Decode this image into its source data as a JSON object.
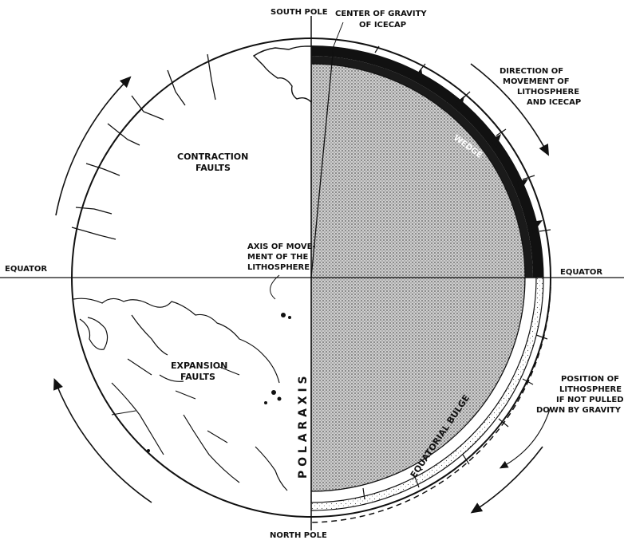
{
  "labels": {
    "south_pole": "SOUTH POLE",
    "north_pole": "NORTH POLE",
    "center_gravity_1": "CENTER OF GRAVITY",
    "center_gravity_2": "OF ICECAP",
    "direction_1": "DIRECTION OF",
    "direction_2": "MOVEMENT OF",
    "direction_3": "LITHOSPHERE",
    "direction_4": "AND ICECAP",
    "contraction_1": "CONTRACTION",
    "contraction_2": "FAULTS",
    "wedge": "WEDGE",
    "axis_move_1": "AXIS OF MOVE-",
    "axis_move_2": "MENT OF THE",
    "axis_move_3": "LITHOSPHERE",
    "equator_left": "EQUATOR",
    "equator_right": "EQUATOR",
    "polar_axis": "P O L A R    A X I S",
    "expansion_1": "EXPANSION",
    "expansion_2": "FAULTS",
    "equatorial_bulge": "EQUATORIAL BULGE",
    "position_1": "POSITION OF",
    "position_2": "LITHOSPHERE",
    "position_3": "IF NOT PULLED",
    "position_4": "DOWN BY GRAVITY"
  },
  "colors": {
    "ink": "#111111",
    "shade": "#9a9a9a",
    "stipple": "#dcdcdc",
    "paper": "#ffffff"
  }
}
